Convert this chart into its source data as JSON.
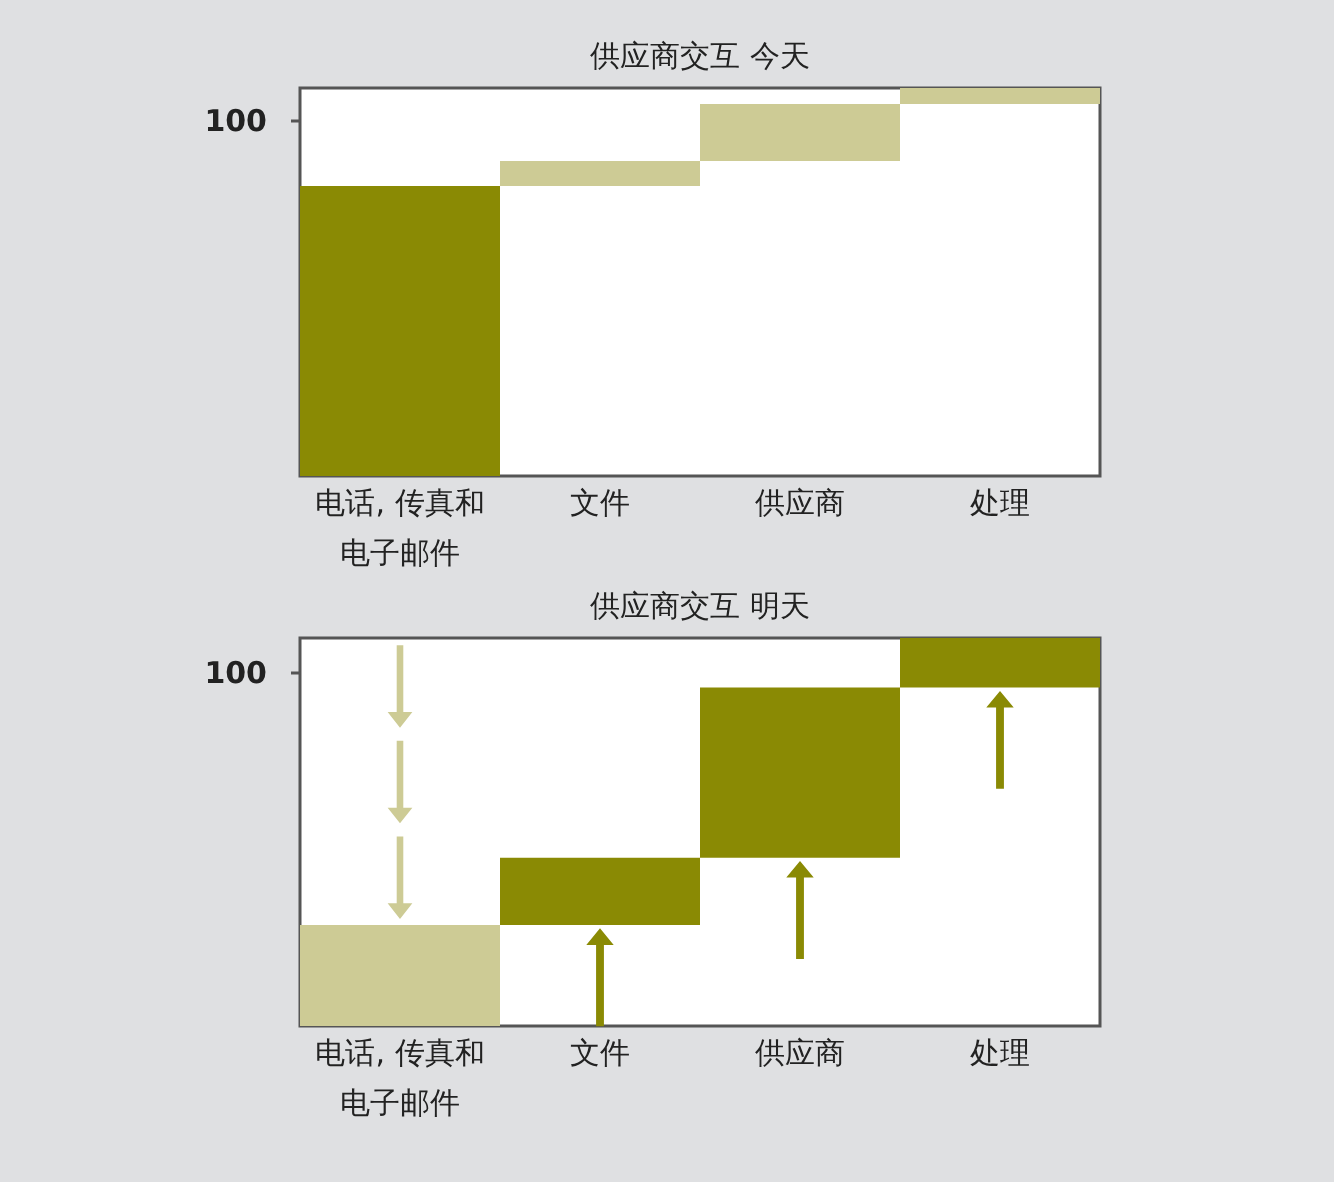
{
  "chart_data": [
    {
      "type": "bar",
      "title": "供应商交互  今天",
      "categories": [
        "电话, 传真和电子邮件",
        "文件",
        "供应商",
        "处理"
      ],
      "values": [
        81.5,
        7,
        16,
        4.5
      ],
      "base": [
        0,
        81.5,
        88.5,
        104.5
      ],
      "colors": [
        "#8a8a04",
        "#cdcb95",
        "#cdcb95",
        "#cdcb95"
      ],
      "ylim": [
        0,
        109
      ],
      "yticks": [
        100
      ]
    },
    {
      "type": "bar",
      "title": "供应商交互  明天",
      "categories": [
        "电话, 传真和电子邮件",
        "文件",
        "供应商",
        "处理"
      ],
      "values": [
        28.5,
        19,
        48,
        14
      ],
      "base": [
        0,
        28.5,
        47.5,
        95.5
      ],
      "colors": [
        "#cdcb95",
        "#8a8a04",
        "#8a8a04",
        "#8a8a04"
      ],
      "ylim": [
        0,
        109.5
      ],
      "yticks": [
        100
      ]
    }
  ]
}
